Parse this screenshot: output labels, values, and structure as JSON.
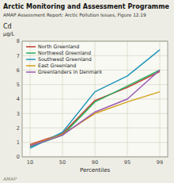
{
  "chart_data": {
    "type": "line",
    "title": "Arctic Monitoring and Assessment Programme",
    "subtitle": "AMAP Assessment Report: Arctic Pollution Issues, Figure 12.19",
    "ylabel": [
      "Cd",
      "µg/L"
    ],
    "xlabel": "Percentiles",
    "categories": [
      "10",
      "50",
      "90",
      "95",
      "99"
    ],
    "series": [
      {
        "name": "North Greenland",
        "color": "#c0392b",
        "values": [
          0.85,
          1.6,
          3.9,
          4.8,
          5.9
        ]
      },
      {
        "name": "Northwest Greenland",
        "color": "#27ae60",
        "values": [
          0.7,
          1.5,
          3.8,
          4.9,
          6.0
        ]
      },
      {
        "name": "Southwest Greenland",
        "color": "#2196b9",
        "values": [
          0.6,
          1.7,
          4.5,
          5.6,
          7.4
        ]
      },
      {
        "name": "East Greenland",
        "color": "#d4a017",
        "values": [
          0.8,
          1.55,
          3.0,
          3.8,
          4.5
        ]
      },
      {
        "name": "Greenlanders in Denmark",
        "color": "#9b59b6",
        "values": [
          0.75,
          1.5,
          3.1,
          4.0,
          6.0
        ]
      }
    ],
    "ylim": [
      0,
      8
    ],
    "yticks": [
      0,
      1,
      2,
      3,
      4,
      5,
      6,
      7,
      8
    ],
    "grid": true,
    "legend": "upper left",
    "annotations": [
      "AMAP"
    ]
  }
}
